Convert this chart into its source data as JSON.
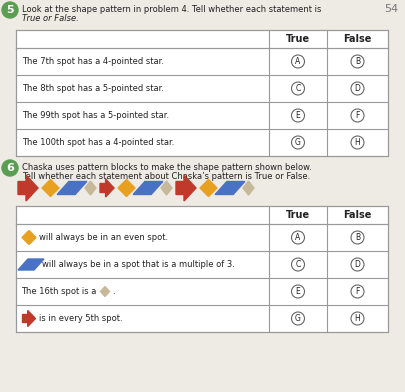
{
  "bg_color": "#eeeae4",
  "q5_text_line1": "Look at the shape pattern in problem 4. Tell whether each statement is",
  "q5_text_line2": "True or False.",
  "q5_rows": [
    {
      "text": "The 7th spot has a 4-pointed star.",
      "true_label": "A",
      "false_label": "B"
    },
    {
      "text": "The 8th spot has a 5-pointed star.",
      "true_label": "C",
      "false_label": "D"
    },
    {
      "text": "The 99th spot has a 5-pointed star.",
      "true_label": "E",
      "false_label": "F"
    },
    {
      "text": "The 100th spot has a 4-pointed star.",
      "true_label": "G",
      "false_label": "H"
    }
  ],
  "q6_text_line1": "Chaska uses pattern blocks to make the shape pattern shown below.",
  "q6_text_line2": "Tell whether each statement about Chaska’s pattern is True or False.",
  "q6_rows": [
    {
      "shape": "orange_diamond",
      "text": "will always be in an even spot.",
      "true_label": "A",
      "false_label": "B"
    },
    {
      "shape": "blue_para",
      "text": "will always be in a spot that is a multiple of 3.",
      "true_label": "C",
      "false_label": "D"
    },
    {
      "shape": "none",
      "text": "The 16th spot is a",
      "true_label": "E",
      "false_label": "F"
    },
    {
      "shape": "red_arrow",
      "text": "is in every 5th spot.",
      "true_label": "G",
      "false_label": "H"
    }
  ],
  "orange": "#e8a020",
  "blue": "#4a72c4",
  "red": "#c0392b",
  "tan": "#c8b89a",
  "green_circle": "#5a9e52",
  "circle_border": "#666666",
  "table_border": "#999999",
  "text_color": "#222222"
}
